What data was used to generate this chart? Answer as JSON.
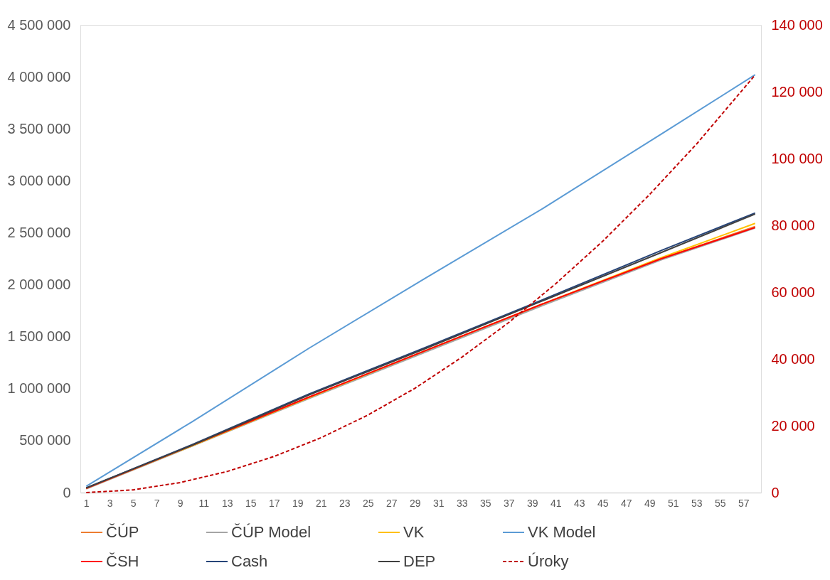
{
  "chart_data": {
    "type": "line",
    "x": [
      1,
      10,
      20,
      30,
      40,
      50,
      58
    ],
    "xlim": [
      0.5,
      58.5
    ],
    "xticks": [
      1,
      3,
      5,
      7,
      9,
      11,
      13,
      15,
      17,
      19,
      21,
      23,
      25,
      27,
      29,
      31,
      33,
      35,
      37,
      39,
      41,
      43,
      45,
      47,
      49,
      51,
      53,
      55,
      57
    ],
    "ylim": [
      0,
      4500000
    ],
    "yticks": [
      {
        "value": 0,
        "label": "0"
      },
      {
        "value": 500000,
        "label": "500 000"
      },
      {
        "value": 1000000,
        "label": "1 000 000"
      },
      {
        "value": 1500000,
        "label": "1 500 000"
      },
      {
        "value": 2000000,
        "label": "2 000 000"
      },
      {
        "value": 2500000,
        "label": "2 500 000"
      },
      {
        "value": 3000000,
        "label": "3 000 000"
      },
      {
        "value": 3500000,
        "label": "3 500 000"
      },
      {
        "value": 4000000,
        "label": "4 000 000"
      },
      {
        "value": 4500000,
        "label": "4 500 000"
      }
    ],
    "y2lim": [
      0,
      140000
    ],
    "y2ticks": [
      {
        "value": 0,
        "label": "0"
      },
      {
        "value": 20000,
        "label": "20 000"
      },
      {
        "value": 40000,
        "label": "40 000"
      },
      {
        "value": 60000,
        "label": "60 000"
      },
      {
        "value": 80000,
        "label": "80 000"
      },
      {
        "value": 100000,
        "label": "100 000"
      },
      {
        "value": 120000,
        "label": "120 000"
      },
      {
        "value": 140000,
        "label": "140 000"
      }
    ],
    "grid": false,
    "legend": "bottom",
    "marker": "none",
    "series": [
      {
        "name": "ČÚP",
        "color": "#ed7d31",
        "values": [
          40000,
          450000,
          915000,
          1365000,
          1815000,
          2250000,
          2560000
        ]
      },
      {
        "name": "ČÚP Model",
        "color": "#a5a5a5",
        "values": [
          35000,
          445000,
          905000,
          1355000,
          1805000,
          2240000,
          2545000
        ]
      },
      {
        "name": "VK",
        "color": "#ffc000",
        "values": [
          40000,
          450000,
          915000,
          1370000,
          1820000,
          2260000,
          2590000
        ]
      },
      {
        "name": "VK Model",
        "color": "#5b9bd5",
        "values": [
          60000,
          680000,
          1390000,
          2070000,
          2740000,
          3450000,
          4020000
        ]
      },
      {
        "name": "ČSH",
        "color": "#ff0000",
        "values": [
          40000,
          455000,
          920000,
          1370000,
          1820000,
          2250000,
          2550000
        ]
      },
      {
        "name": "Cash",
        "color": "#264478",
        "values": [
          45000,
          460000,
          950000,
          1400000,
          1860000,
          2330000,
          2690000
        ]
      },
      {
        "name": "DEP",
        "color": "#404040",
        "values": [
          45000,
          455000,
          940000,
          1390000,
          1850000,
          2310000,
          2680000
        ]
      },
      {
        "name": "Úroky",
        "color": "#c00000",
        "axis": "y2",
        "line_style": "dashed",
        "x": [
          1,
          5,
          9,
          13,
          17,
          21,
          25,
          29,
          33,
          37,
          41,
          45,
          49,
          53,
          58
        ],
        "values": [
          0,
          800,
          3000,
          6300,
          10800,
          16400,
          23200,
          31200,
          40500,
          50900,
          62500,
          75200,
          89200,
          104300,
          125000
        ]
      }
    ]
  }
}
